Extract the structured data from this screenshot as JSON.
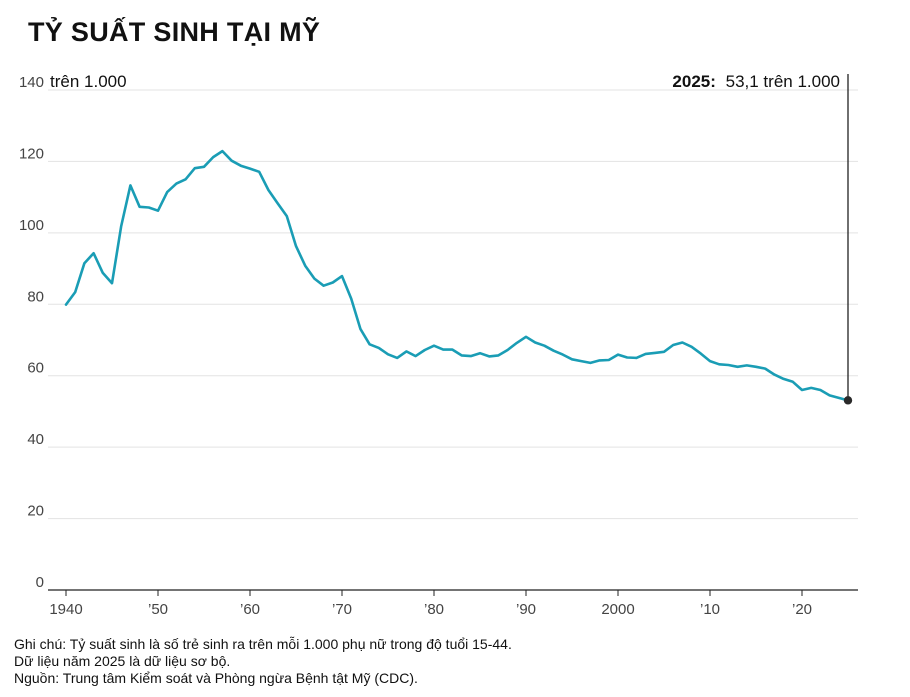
{
  "chart_data": {
    "type": "line",
    "title": "TỶ SUẤT SINH TẠI MỸ",
    "unit_label": "trên 1.000",
    "ylim": [
      0,
      140
    ],
    "y_ticks": [
      0,
      20,
      40,
      60,
      80,
      100,
      120,
      140
    ],
    "xlim": [
      1940,
      2025
    ],
    "x_ticks": [
      {
        "value": 1940,
        "label": "1940"
      },
      {
        "value": 1950,
        "label": "’50"
      },
      {
        "value": 1960,
        "label": "’60"
      },
      {
        "value": 1970,
        "label": "’70"
      },
      {
        "value": 1980,
        "label": "’80"
      },
      {
        "value": 1990,
        "label": "’90"
      },
      {
        "value": 2000,
        "label": "2000"
      },
      {
        "value": 2010,
        "label": "’10"
      },
      {
        "value": 2020,
        "label": "’20"
      }
    ],
    "series": [
      {
        "name": "Tỷ suất sinh",
        "color": "#1a9db5",
        "x": [
          1940,
          1941,
          1942,
          1943,
          1944,
          1945,
          1946,
          1947,
          1948,
          1949,
          1950,
          1951,
          1952,
          1953,
          1954,
          1955,
          1956,
          1957,
          1958,
          1959,
          1960,
          1961,
          1962,
          1963,
          1964,
          1965,
          1966,
          1967,
          1968,
          1969,
          1970,
          1971,
          1972,
          1973,
          1974,
          1975,
          1976,
          1977,
          1978,
          1979,
          1980,
          1981,
          1982,
          1983,
          1984,
          1985,
          1986,
          1987,
          1988,
          1989,
          1990,
          1991,
          1992,
          1993,
          1994,
          1995,
          1996,
          1997,
          1998,
          1999,
          2000,
          2001,
          2002,
          2003,
          2004,
          2005,
          2006,
          2007,
          2008,
          2009,
          2010,
          2011,
          2012,
          2013,
          2014,
          2015,
          2016,
          2017,
          2018,
          2019,
          2020,
          2021,
          2022,
          2023,
          2024,
          2025
        ],
        "values": [
          79.9,
          83.4,
          91.5,
          94.3,
          88.8,
          85.9,
          101.9,
          113.3,
          107.3,
          107.1,
          106.2,
          111.4,
          113.8,
          115.0,
          118.1,
          118.5,
          121.2,
          122.9,
          120.2,
          118.8,
          118.0,
          117.1,
          112.0,
          108.3,
          104.7,
          96.3,
          90.8,
          87.2,
          85.2,
          86.1,
          87.9,
          81.6,
          73.1,
          68.8,
          67.8,
          66.0,
          65.0,
          66.8,
          65.5,
          67.2,
          68.4,
          67.3,
          67.3,
          65.7,
          65.5,
          66.3,
          65.4,
          65.7,
          67.2,
          69.2,
          70.9,
          69.3,
          68.4,
          67.0,
          65.9,
          64.6,
          64.1,
          63.6,
          64.3,
          64.4,
          65.9,
          65.1,
          65.0,
          66.1,
          66.4,
          66.7,
          68.6,
          69.3,
          68.1,
          66.2,
          64.1,
          63.2,
          63.0,
          62.5,
          62.9,
          62.5,
          62.0,
          60.3,
          59.1,
          58.3,
          56.0,
          56.6,
          56.0,
          54.5,
          53.8,
          53.1
        ]
      }
    ],
    "annotation": {
      "year": 2025,
      "value": 53.1,
      "year_label": "2025:",
      "value_label": "53,1 trên 1.000"
    }
  },
  "notes": {
    "line1": "Ghi chú: Tỷ suất sinh là số trẻ sinh ra trên mỗi 1.000 phụ nữ trong độ tuổi 15-44.",
    "line2": "Dữ liệu năm 2025 là dữ liệu sơ bộ.",
    "line3": "Nguồn: Trung tâm Kiểm soát và Phòng ngừa Bệnh tật Mỹ (CDC)."
  }
}
